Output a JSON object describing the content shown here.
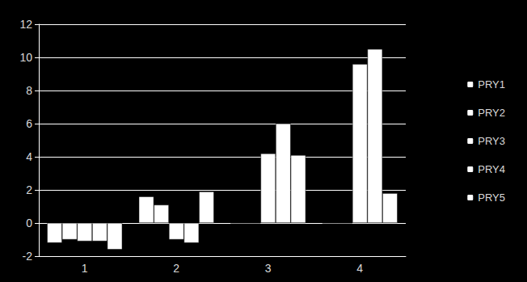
{
  "chart_data": {
    "type": "bar",
    "categories": [
      "1",
      "2",
      "3",
      "4"
    ],
    "series": [
      {
        "name": "PRY1",
        "color": "#ffffff",
        "values": [
          -1.2,
          1.6,
          0,
          0
        ]
      },
      {
        "name": "PRY2",
        "color": "#ffffff",
        "values": [
          -1.0,
          1.1,
          0,
          0
        ]
      },
      {
        "name": "PRY3",
        "color": "#ffffff",
        "values": [
          -1.1,
          -1.0,
          4.2,
          9.6
        ]
      },
      {
        "name": "PRY4",
        "color": "#ffffff",
        "values": [
          -1.1,
          -1.2,
          6.0,
          10.5
        ]
      },
      {
        "name": "PRY5",
        "color": "#ffffff",
        "values": [
          -1.6,
          1.9,
          4.1,
          1.8
        ]
      }
    ],
    "ylim": [
      -2,
      12
    ],
    "yticks": [
      -2,
      0,
      2,
      4,
      6,
      8,
      10,
      12
    ],
    "grid": true,
    "legend": "right"
  }
}
